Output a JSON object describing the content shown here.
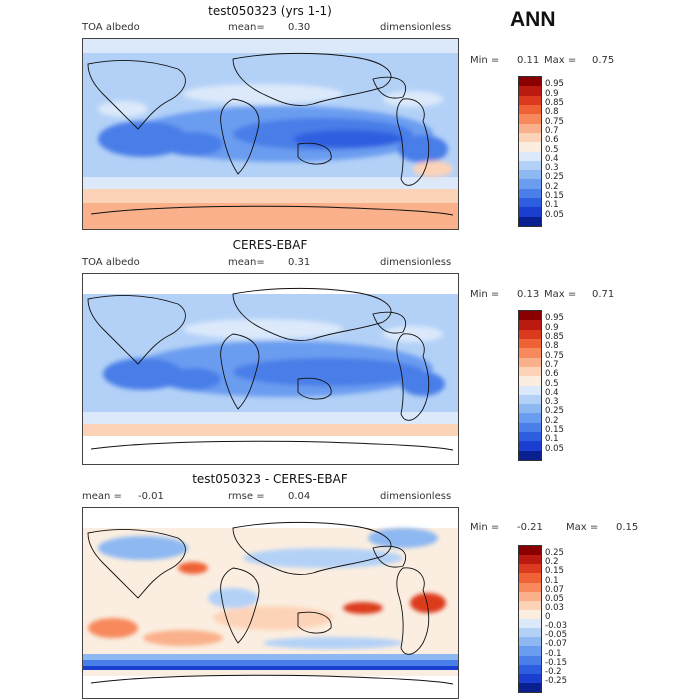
{
  "season": "ANN",
  "panels": [
    {
      "title": "test050323 (yrs 1-1)",
      "left_label": "TOA albedo",
      "mean_label": "mean=",
      "mean_value": "0.30",
      "right_label": "dimensionless",
      "min_label": "Min =",
      "min_value": "0.11",
      "max_label": "Max =",
      "max_value": "0.75",
      "colorbar": {
        "labels": [
          "0.95",
          "0.9",
          "0.85",
          "0.8",
          "0.75",
          "0.7",
          "0.6",
          "0.5",
          "0.4",
          "0.3",
          "0.25",
          "0.2",
          "0.15",
          "0.1",
          "0.05"
        ],
        "colors": [
          "#8a0000",
          "#bb1a10",
          "#dc3a1e",
          "#ef6236",
          "#f7895c",
          "#fab08a",
          "#fdd3b8",
          "#fbeee0",
          "#dbe9fb",
          "#b3d1f7",
          "#8db8f2",
          "#6a9cf0",
          "#4a7ee8",
          "#2d5ee0",
          "#1a3fd0",
          "#0a1f90"
        ]
      }
    },
    {
      "title": "CERES-EBAF",
      "left_label": "TOA albedo",
      "mean_label": "mean=",
      "mean_value": "0.31",
      "right_label": "dimensionless",
      "min_label": "Min =",
      "min_value": "0.13",
      "max_label": "Max =",
      "max_value": "0.71",
      "colorbar": {
        "labels": [
          "0.95",
          "0.9",
          "0.85",
          "0.8",
          "0.75",
          "0.7",
          "0.6",
          "0.5",
          "0.4",
          "0.3",
          "0.25",
          "0.2",
          "0.15",
          "0.1",
          "0.05"
        ],
        "colors": [
          "#8a0000",
          "#bb1a10",
          "#dc3a1e",
          "#ef6236",
          "#f7895c",
          "#fab08a",
          "#fdd3b8",
          "#fbeee0",
          "#dbe9fb",
          "#b3d1f7",
          "#8db8f2",
          "#6a9cf0",
          "#4a7ee8",
          "#2d5ee0",
          "#1a3fd0",
          "#0a1f90"
        ]
      }
    },
    {
      "title": "test050323 - CERES-EBAF",
      "left_label": "mean =",
      "left_value": "-0.01",
      "mid_label": "rmse =",
      "mid_value": "0.04",
      "right_label": "dimensionless",
      "min_label": "Min =",
      "min_value": "-0.21",
      "max_label": "Max =",
      "max_value": "0.15",
      "colorbar": {
        "labels": [
          "0.25",
          "0.2",
          "0.15",
          "0.1",
          "0.07",
          "0.05",
          "0.03",
          "0",
          "-0.03",
          "-0.05",
          "-0.07",
          "-0.1",
          "-0.15",
          "-0.2",
          "-0.25"
        ],
        "colors": [
          "#8a0000",
          "#bb1a10",
          "#dc3a1e",
          "#ef6236",
          "#f7895c",
          "#fab08a",
          "#fdd3b8",
          "#fbeee0",
          "#dbe9fb",
          "#b3d1f7",
          "#8db8f2",
          "#6a9cf0",
          "#4a7ee8",
          "#2d5ee0",
          "#1a3fd0",
          "#0a1f90"
        ]
      }
    }
  ]
}
